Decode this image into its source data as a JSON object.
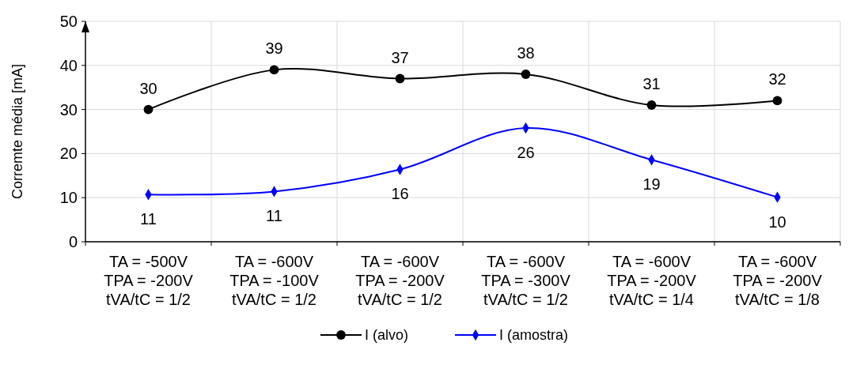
{
  "chart_data": {
    "type": "line",
    "ylabel": "Corremte média [mA]",
    "categories": [
      "TA = -500V\nTPA = -200V\ntVA/tC = 1/2",
      "TA = -600V\nTPA = -100V\ntVA/tC = 1/2",
      "TA = -600V\nTPA = -200V\ntVA/tC = 1/2",
      "TA = -600V\nTPA = -300V\ntVA/tC = 1/2",
      "TA = -600V\nTPA = -200V\ntVA/tC = 1/4",
      "TA = -600V\nTPA = -200V\ntVA/tC = 1/8"
    ],
    "series": [
      {
        "name": "I (alvo)",
        "color": "#000000",
        "marker": "circle",
        "values": [
          30,
          39,
          37,
          38,
          31,
          32
        ],
        "value_labels": [
          "30",
          "39",
          "37",
          "38",
          "31",
          "32"
        ]
      },
      {
        "name": "I (amostra)",
        "color": "#0000ff",
        "marker": "diamond",
        "values": [
          10.7,
          11.4,
          16.4,
          25.8,
          18.6,
          10.1
        ],
        "value_labels": [
          "11",
          "11",
          "16",
          "26",
          "19",
          "10"
        ]
      }
    ],
    "ylim": [
      0,
      50
    ],
    "yticks": [
      0,
      10,
      20,
      30,
      40,
      50
    ],
    "grid": true,
    "legend": "bottom",
    "line_style": "solid"
  }
}
